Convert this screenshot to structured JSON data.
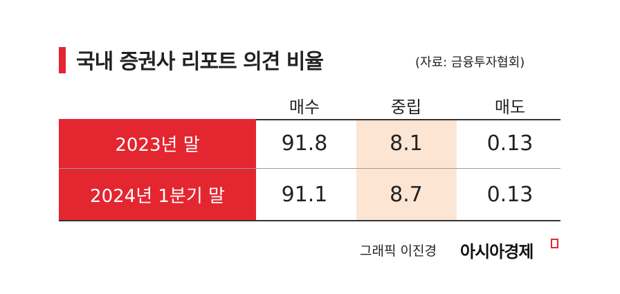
{
  "header": {
    "title": "국내 증권사 리포트 의견 비율",
    "source": "(자료: 금융투자협회)"
  },
  "table": {
    "columns": [
      "매수",
      "중립",
      "매도"
    ],
    "rows": [
      {
        "label": "2023년 말",
        "values": [
          91.8,
          8.1,
          0.13
        ]
      },
      {
        "label": "2024년 1분기 말",
        "values": [
          91.1,
          8.7,
          0.13
        ]
      }
    ]
  },
  "footer": {
    "credit": "그래픽 이진경",
    "brand": "아시아경제"
  }
}
